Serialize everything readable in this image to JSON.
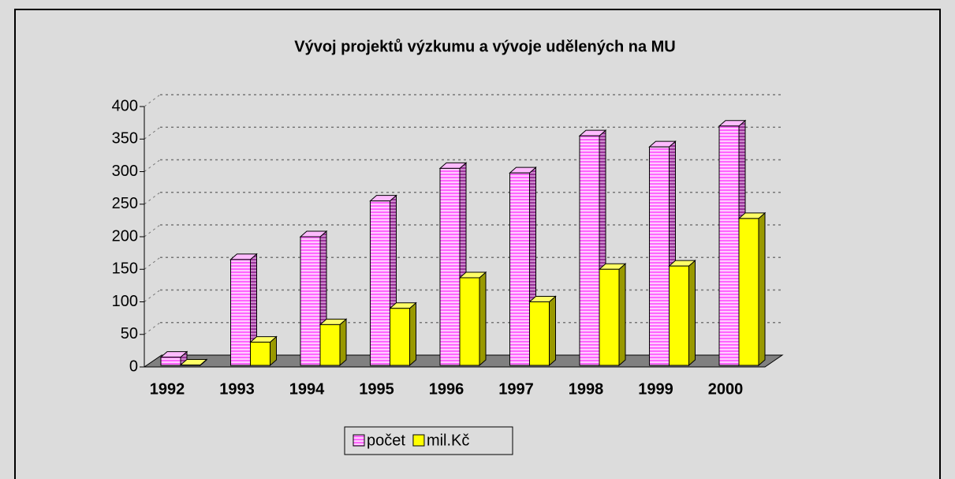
{
  "chart_data": {
    "type": "bar",
    "title": "Vývoj projektů výzkumu a vývoje udělených na MU",
    "categories": [
      "1992",
      "1993",
      "1994",
      "1995",
      "1996",
      "1997",
      "1998",
      "1999",
      "2000"
    ],
    "series": [
      {
        "name": "počet",
        "color": "#ff66ff",
        "values": [
          15,
          165,
          200,
          255,
          305,
          298,
          355,
          338,
          370
        ]
      },
      {
        "name": "mil.Kč",
        "color": "#ffff00",
        "values": [
          3,
          38,
          65,
          90,
          137,
          100,
          150,
          155,
          228
        ]
      }
    ],
    "ylim": [
      0,
      400
    ],
    "yticks": [
      0,
      50,
      100,
      150,
      200,
      250,
      300,
      350,
      400
    ],
    "grid": true,
    "legend": "bottom"
  }
}
